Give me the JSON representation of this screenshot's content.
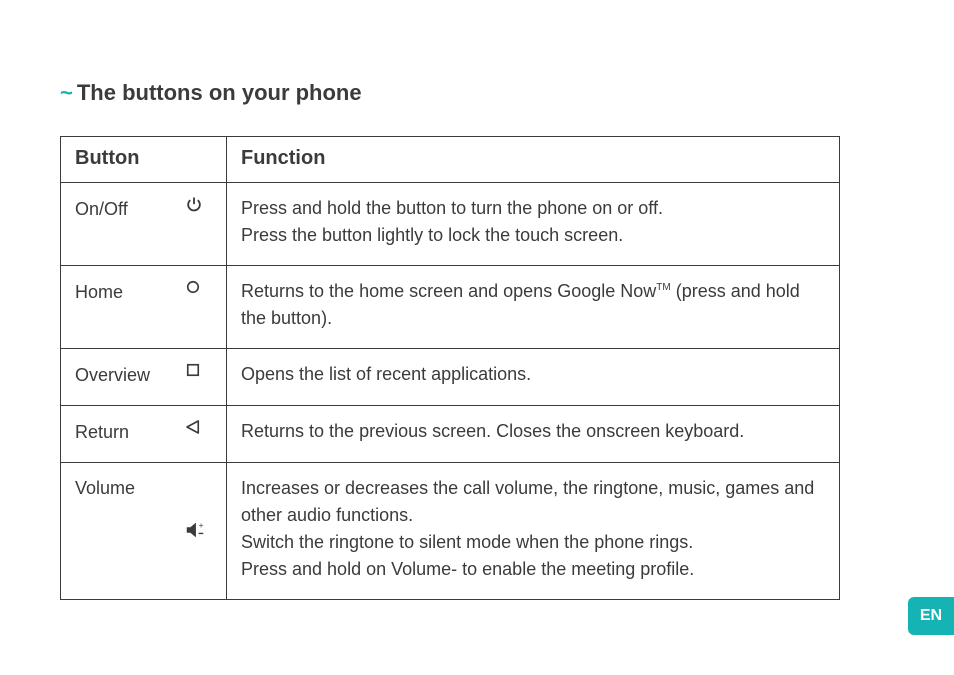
{
  "accent_color": "#15b3b3",
  "text_color": "#3b3b3b",
  "heading": "The buttons on your phone",
  "tilde": "~",
  "lang_tab": "EN",
  "table": {
    "header": {
      "button": "Button",
      "function": "Function"
    },
    "rows": [
      {
        "label": "On/Off",
        "icon": "power-icon",
        "icon_mid": false,
        "function": "Press and hold the button to turn the phone on or off.\nPress the button lightly to lock the touch screen."
      },
      {
        "label": "Home",
        "icon": "circle-icon",
        "icon_mid": false,
        "function_html": "Returns to the home screen and opens Google Now<span class=\"sup\">TM</span> (press and hold the button)."
      },
      {
        "label": "Overview",
        "icon": "square-icon",
        "icon_mid": false,
        "function": "Opens the list of recent applications."
      },
      {
        "label": "Return",
        "icon": "triangle-left-icon",
        "icon_mid": false,
        "function": "Returns to the previous screen. Closes the onscreen keyboard."
      },
      {
        "label": "Volume",
        "icon": "volume-icon",
        "icon_mid": true,
        "function": "Increases or decreases the call volume, the ringtone, music, games and other audio functions.\nSwitch the ringtone to silent mode when the phone rings.\nPress and hold on Volume- to enable the meeting profile."
      }
    ]
  },
  "icons": {
    "power-icon": "<svg viewBox=\"0 0 24 24\" width=\"20\" height=\"20\"><path fill=\"none\" stroke=\"#3b3b3b\" stroke-width=\"2.2\" d=\"M12 3 L12 11\"/><path fill=\"none\" stroke=\"#3b3b3b\" stroke-width=\"2.2\" d=\"M7.5 6.2 A7 7 0 1 0 16.5 6.2\"/></svg>",
    "circle-icon": "<svg viewBox=\"0 0 24 24\" width=\"18\" height=\"18\"><circle cx=\"12\" cy=\"12\" r=\"7\" fill=\"none\" stroke=\"#3b3b3b\" stroke-width=\"2.2\"/></svg>",
    "square-icon": "<svg viewBox=\"0 0 24 24\" width=\"18\" height=\"18\"><rect x=\"5\" y=\"5\" width=\"14\" height=\"14\" fill=\"none\" stroke=\"#3b3b3b\" stroke-width=\"2.2\"/></svg>",
    "triangle-left-icon": "<svg viewBox=\"0 0 24 24\" width=\"18\" height=\"18\"><polygon points=\"19,4 19,20 4,12\" fill=\"none\" stroke=\"#3b3b3b\" stroke-width=\"2.2\" stroke-linejoin=\"round\"/></svg>",
    "volume-icon": "<svg viewBox=\"0 0 24 24\" width=\"22\" height=\"22\"><polygon points=\"3,9 7,9 13,4 13,20 7,15 3,15\" fill=\"#3b3b3b\"/><text x=\"16\" y=\"10\" font-size=\"9\" fill=\"#3b3b3b\">+</text><rect x=\"16\" y=\"15\" width=\"5\" height=\"1.5\" fill=\"#3b3b3b\"/></svg>"
  }
}
